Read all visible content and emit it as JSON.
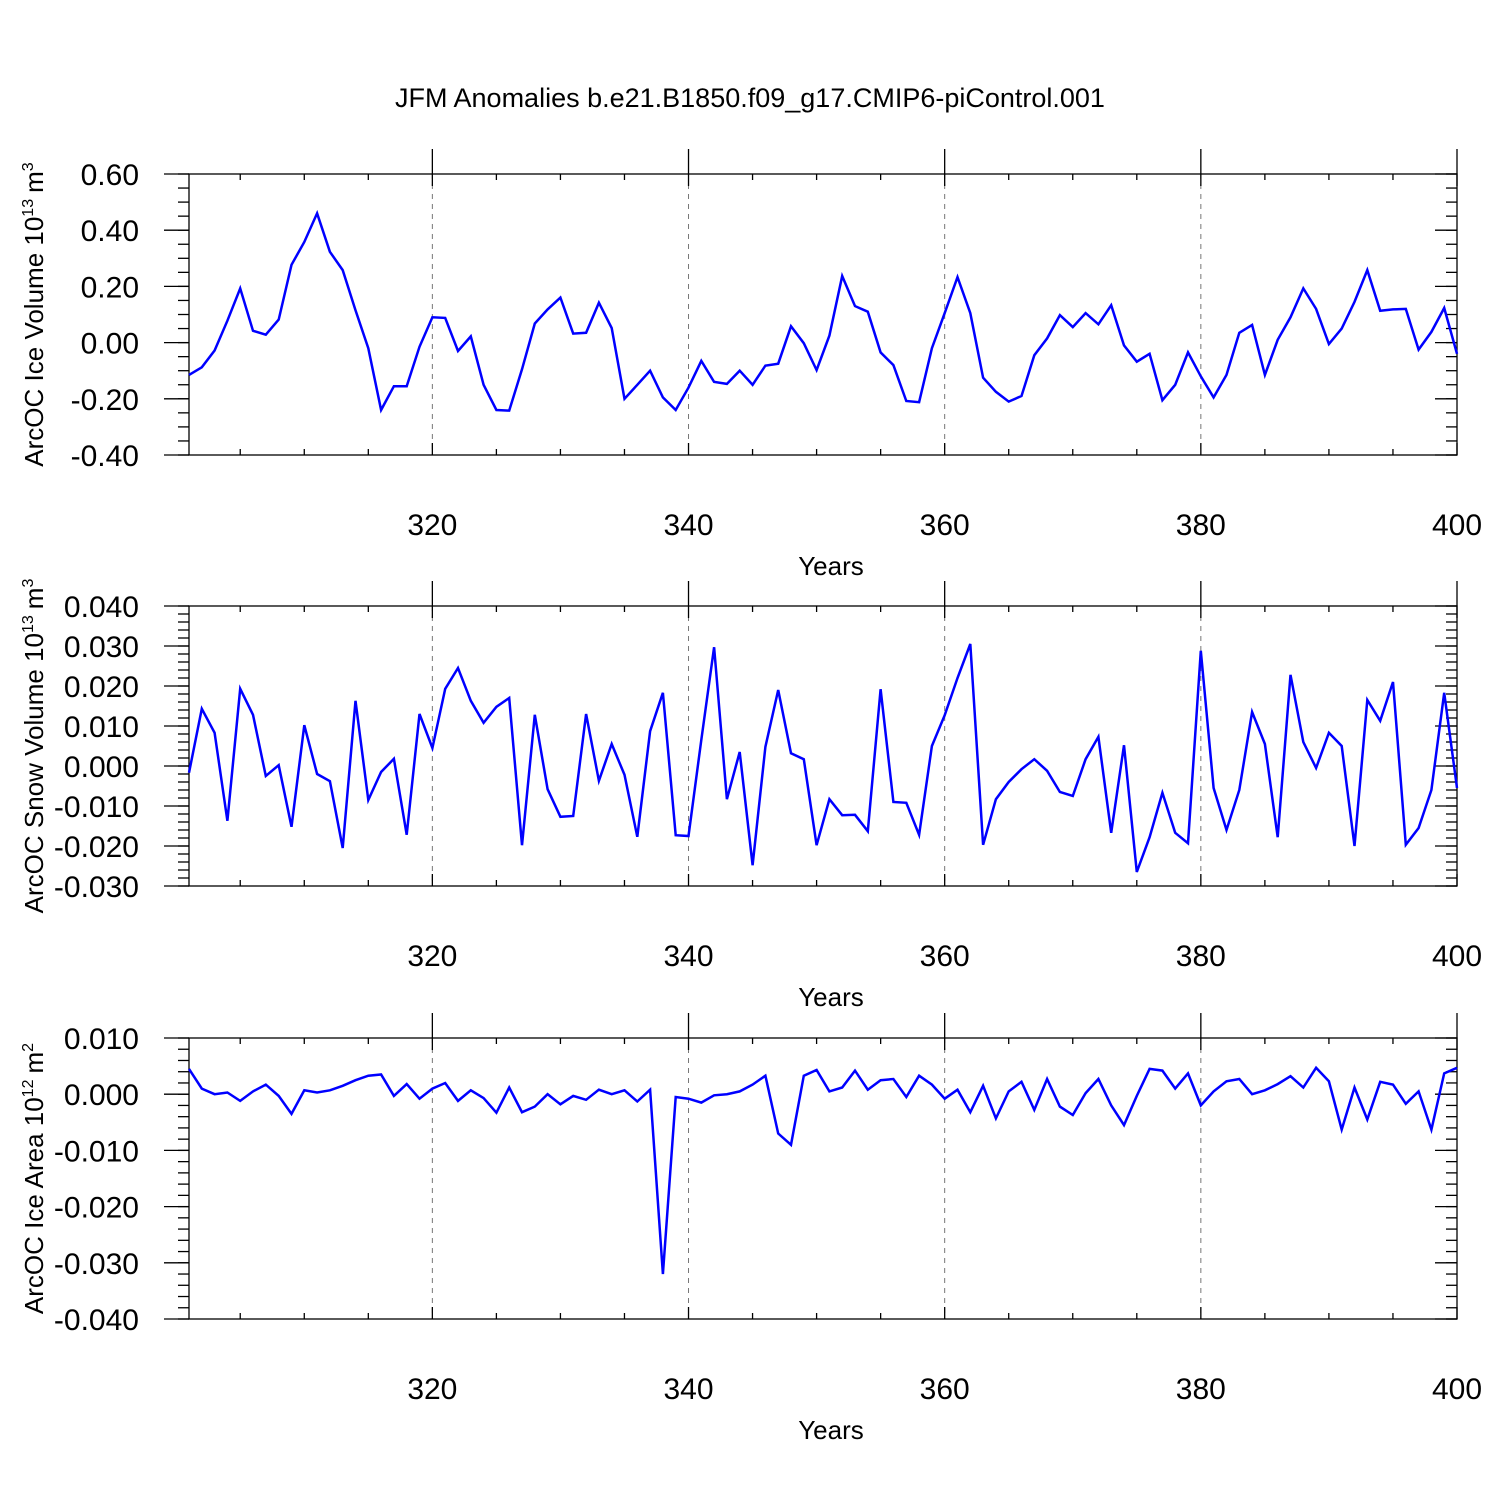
{
  "title": "JFM Anomalies b.e21.B1850.f09_g17.CMIP6-piControl.001",
  "chart_data": [
    {
      "type": "line",
      "xlabel": "Years",
      "ylabel": "ArcOC Ice Volume 10",
      "ylabel_exp": "13",
      "ylabel_unit": "m",
      "ylabel_unit_exp": "3",
      "xlim": [
        301,
        400
      ],
      "ylim": [
        -0.4,
        0.6
      ],
      "x_ticks": [
        320,
        340,
        360,
        380,
        400
      ],
      "y_ticks": [
        "0.60",
        "0.40",
        "0.20",
        "0.00",
        "-0.20",
        "-0.40"
      ],
      "y_tick_values": [
        0.6,
        0.4,
        0.2,
        0.0,
        -0.2,
        -0.4
      ],
      "y_minor_step": 0.05,
      "grid": "dashed vertical at x ticks",
      "x_start": 301,
      "values": [
        -0.115,
        -0.088,
        -0.028,
        0.078,
        0.193,
        0.042,
        0.028,
        0.082,
        0.277,
        0.358,
        0.46,
        0.323,
        0.258,
        0.115,
        -0.02,
        -0.24,
        -0.155,
        -0.155,
        -0.015,
        0.09,
        0.088,
        -0.03,
        0.022,
        -0.15,
        -0.24,
        -0.242,
        -0.095,
        0.068,
        0.118,
        0.16,
        0.032,
        0.035,
        0.142,
        0.052,
        -0.2,
        -0.15,
        -0.1,
        -0.195,
        -0.24,
        -0.16,
        -0.065,
        -0.14,
        -0.147,
        -0.1,
        -0.15,
        -0.082,
        -0.075,
        0.058,
        -0.002,
        -0.098,
        0.025,
        0.237,
        0.13,
        0.11,
        -0.035,
        -0.08,
        -0.208,
        -0.212,
        -0.02,
        0.105,
        0.233,
        0.105,
        -0.125,
        -0.175,
        -0.21,
        -0.19,
        -0.045,
        0.015,
        0.098,
        0.055,
        0.105,
        0.065,
        0.133,
        -0.01,
        -0.068,
        -0.04,
        -0.205,
        -0.15,
        -0.035,
        -0.12,
        -0.195,
        -0.115,
        0.035,
        0.063,
        -0.115,
        0.01,
        0.09,
        0.193,
        0.12,
        -0.005,
        0.05,
        0.145,
        0.258,
        0.113,
        0.118,
        0.12,
        -0.025,
        0.038,
        0.123,
        -0.04
      ]
    },
    {
      "type": "line",
      "xlabel": "Years",
      "ylabel": "ArcOC Snow Volume 10",
      "ylabel_exp": "13",
      "ylabel_unit": "m",
      "ylabel_unit_exp": "3",
      "xlim": [
        301,
        400
      ],
      "ylim": [
        -0.03,
        0.04
      ],
      "x_ticks": [
        320,
        340,
        360,
        380,
        400
      ],
      "y_ticks": [
        "0.040",
        "0.030",
        "0.020",
        "0.010",
        "0.000",
        "-0.010",
        "-0.020",
        "-0.030"
      ],
      "y_tick_values": [
        0.04,
        0.03,
        0.02,
        0.01,
        0.0,
        -0.01,
        -0.02,
        -0.03
      ],
      "y_minor_step": 0.002,
      "grid": "dashed vertical at x ticks",
      "x_start": 301,
      "values": [
        -0.0017,
        0.0143,
        0.0083,
        -0.0137,
        0.0193,
        0.0128,
        -0.0025,
        0.0002,
        -0.0152,
        0.0102,
        -0.002,
        -0.0038,
        -0.0205,
        0.0163,
        -0.0085,
        -0.0015,
        0.0018,
        -0.0172,
        0.013,
        0.0045,
        0.0193,
        0.0245,
        0.0163,
        0.0108,
        0.0148,
        0.017,
        -0.0198,
        0.0128,
        -0.0058,
        -0.0127,
        -0.0125,
        0.013,
        -0.0037,
        0.0055,
        -0.0022,
        -0.0177,
        0.0087,
        0.0183,
        -0.0173,
        -0.0175,
        0.0065,
        0.0297,
        -0.0083,
        0.0035,
        -0.0248,
        0.0048,
        0.019,
        0.0032,
        0.0017,
        -0.0198,
        -0.0083,
        -0.0123,
        -0.0122,
        -0.0163,
        0.0192,
        -0.009,
        -0.0092,
        -0.0172,
        0.005,
        0.0127,
        0.022,
        0.0305,
        -0.0197,
        -0.0083,
        -0.004,
        -0.0008,
        0.0017,
        -0.0012,
        -0.0065,
        -0.0075,
        0.0017,
        0.0073,
        -0.0167,
        0.0052,
        -0.0265,
        -0.0178,
        -0.0067,
        -0.0167,
        -0.0193,
        0.0288,
        -0.0055,
        -0.016,
        -0.006,
        0.0135,
        0.0055,
        -0.0178,
        0.0228,
        0.006,
        -0.0005,
        0.0083,
        0.005,
        -0.02,
        0.0165,
        0.0113,
        0.021,
        -0.0197,
        -0.0155,
        -0.006,
        0.0183,
        -0.0055
      ]
    },
    {
      "type": "line",
      "xlabel": "Years",
      "ylabel": "ArcOC Ice Area 10",
      "ylabel_exp": "12",
      "ylabel_unit": "m",
      "ylabel_unit_exp": "2",
      "xlim": [
        301,
        400
      ],
      "ylim": [
        -0.04,
        0.01
      ],
      "x_ticks": [
        320,
        340,
        360,
        380,
        400
      ],
      "y_ticks": [
        "0.010",
        "0.000",
        "-0.010",
        "-0.020",
        "-0.030",
        "-0.040"
      ],
      "y_tick_values": [
        0.01,
        0.0,
        -0.01,
        -0.02,
        -0.03,
        -0.04
      ],
      "y_minor_step": 0.002,
      "grid": "dashed vertical at x ticks",
      "x_start": 301,
      "values": [
        0.0045,
        0.001,
        0.0,
        0.0003,
        -0.0012,
        0.0005,
        0.0017,
        -0.0003,
        -0.0035,
        0.0007,
        0.0003,
        0.0007,
        0.0015,
        0.0025,
        0.0033,
        0.0035,
        -0.0003,
        0.0018,
        -0.0008,
        0.001,
        0.002,
        -0.0012,
        0.0007,
        -0.0007,
        -0.0033,
        0.0012,
        -0.0032,
        -0.0022,
        0.0,
        -0.0018,
        -0.0003,
        -0.001,
        0.0008,
        0.0,
        0.0007,
        -0.0013,
        0.0008,
        -0.032,
        -0.0005,
        -0.0008,
        -0.0015,
        -0.0002,
        0.0,
        0.0005,
        0.0017,
        0.0033,
        -0.007,
        -0.009,
        0.0033,
        0.0043,
        0.0005,
        0.0012,
        0.0042,
        0.0008,
        0.0025,
        0.0027,
        -0.0005,
        0.0033,
        0.0017,
        -0.0008,
        0.0008,
        -0.0032,
        0.0015,
        -0.0043,
        0.0005,
        0.0022,
        -0.0028,
        0.0027,
        -0.0022,
        -0.0037,
        0.0002,
        0.0027,
        -0.002,
        -0.0055,
        -0.0003,
        0.0045,
        0.0042,
        0.001,
        0.0037,
        -0.002,
        0.0005,
        0.0023,
        0.0027,
        0.0,
        0.0007,
        0.0018,
        0.0032,
        0.0012,
        0.0047,
        0.0023,
        -0.0063,
        0.0012,
        -0.0045,
        0.0022,
        0.0017,
        -0.0017,
        0.0005,
        -0.0063,
        0.0037,
        0.0047
      ]
    }
  ]
}
